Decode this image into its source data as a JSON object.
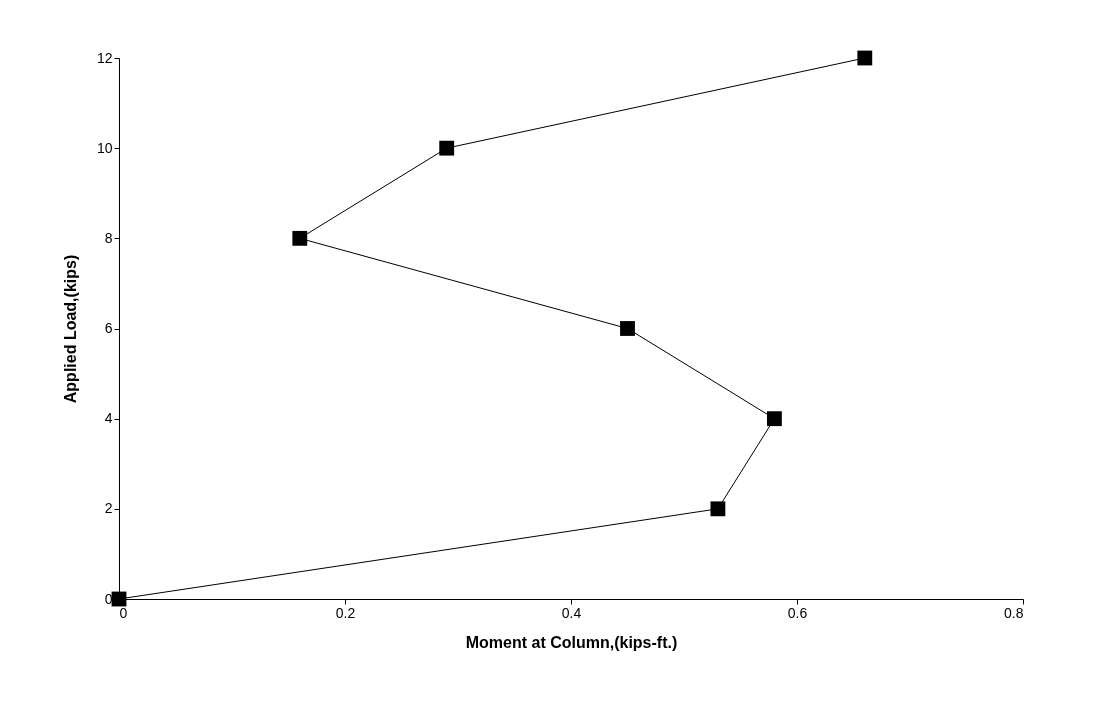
{
  "chart_data": {
    "type": "line",
    "xlabel": "Moment at Column,(kips-ft.)",
    "ylabel": "Applied Load,(kips)",
    "x": [
      0,
      0.53,
      0.58,
      0.45,
      0.16,
      0.29,
      0.66
    ],
    "series": [
      {
        "color": "#000000",
        "values": [
          0,
          2,
          4,
          6,
          8,
          10,
          12
        ]
      }
    ],
    "xlim": [
      0,
      0.8
    ],
    "xticks": [
      0,
      0.2,
      0.4,
      0.6,
      0.8
    ],
    "ylim": [
      0,
      12
    ],
    "yticks": [
      0,
      2,
      4,
      6,
      8,
      10,
      12
    ],
    "grid": false,
    "marker": "square",
    "line_style": "solid"
  }
}
